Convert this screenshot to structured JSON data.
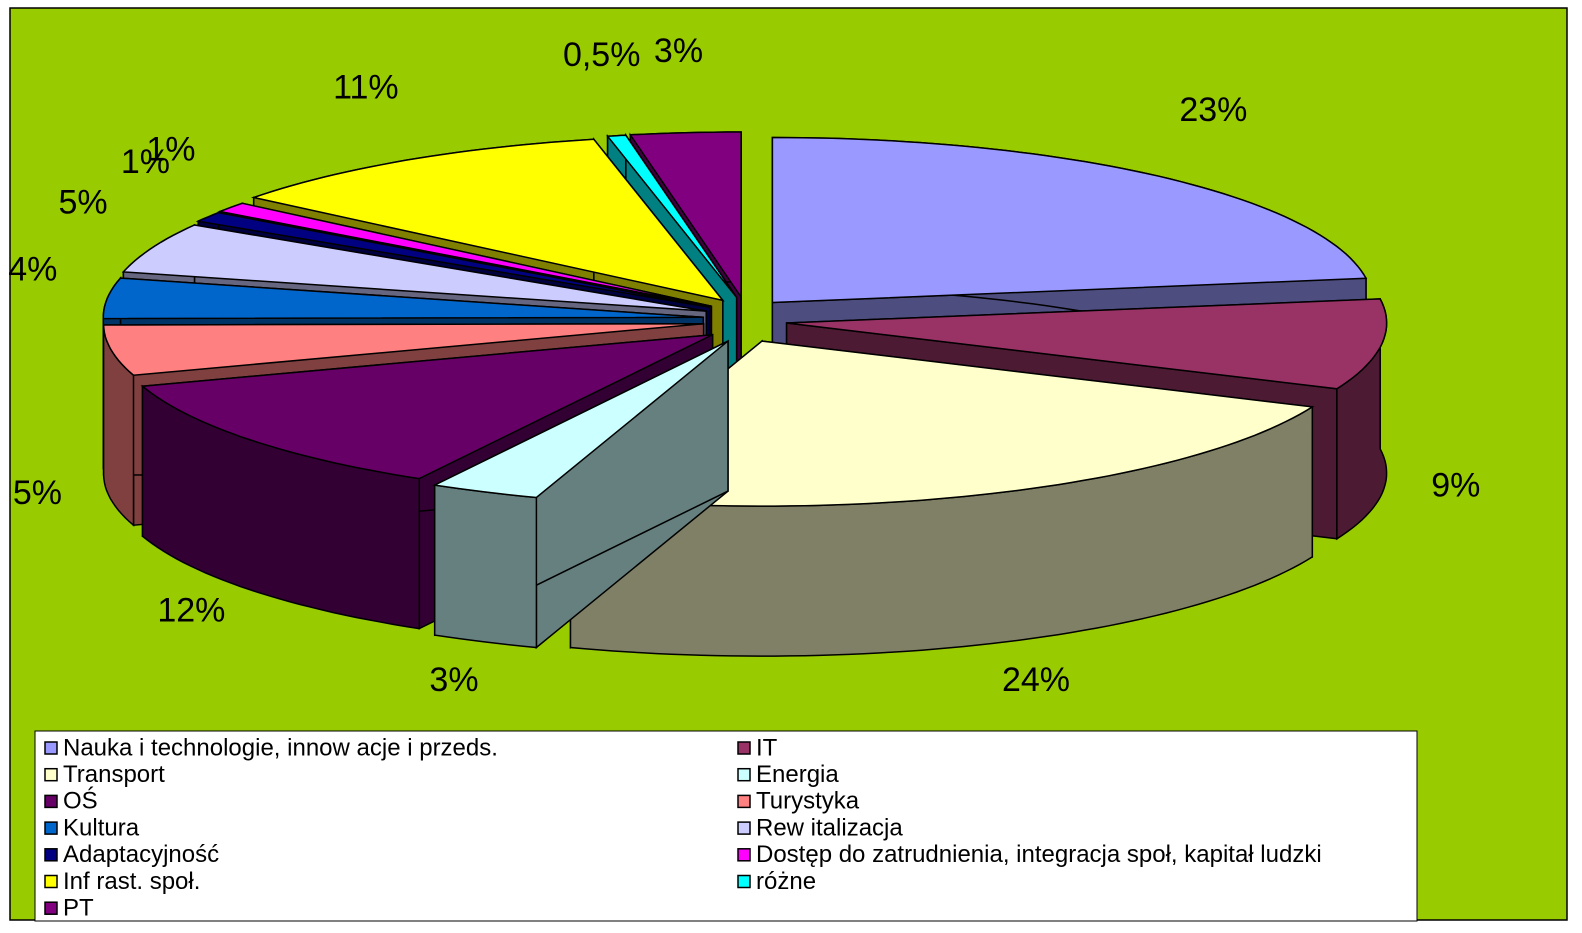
{
  "chart_data": {
    "type": "pie",
    "categories": [
      "Nauka i technologie, innow acje i przeds.",
      "IT",
      "Transport",
      "Energia",
      "OŚ",
      "Turystyka",
      "Kultura",
      "Rew italizacja",
      "Adaptacyjność",
      "Dostęp do zatrudnienia, integracja społ, kapitał ludzki",
      "Inf rast. społ.",
      "różne",
      "PT"
    ],
    "values": [
      23,
      9,
      24,
      3,
      12,
      5,
      4,
      5,
      1,
      1,
      11,
      0.5,
      3
    ],
    "value_labels": [
      "23%",
      "9%",
      "24%",
      "3%",
      "12%",
      "5%",
      "4%",
      "5%",
      "1%",
      "1%",
      "11%",
      "0,5%",
      "3%"
    ],
    "colors": [
      "#9999ff",
      "#993366",
      "#ffffcc",
      "#ccffff",
      "#660066",
      "#ff8080",
      "#0066cc",
      "#ccccff",
      "#000080",
      "#ff00ff",
      "#ffff00",
      "#00ffff",
      "#800080"
    ],
    "legend": "bottom"
  }
}
